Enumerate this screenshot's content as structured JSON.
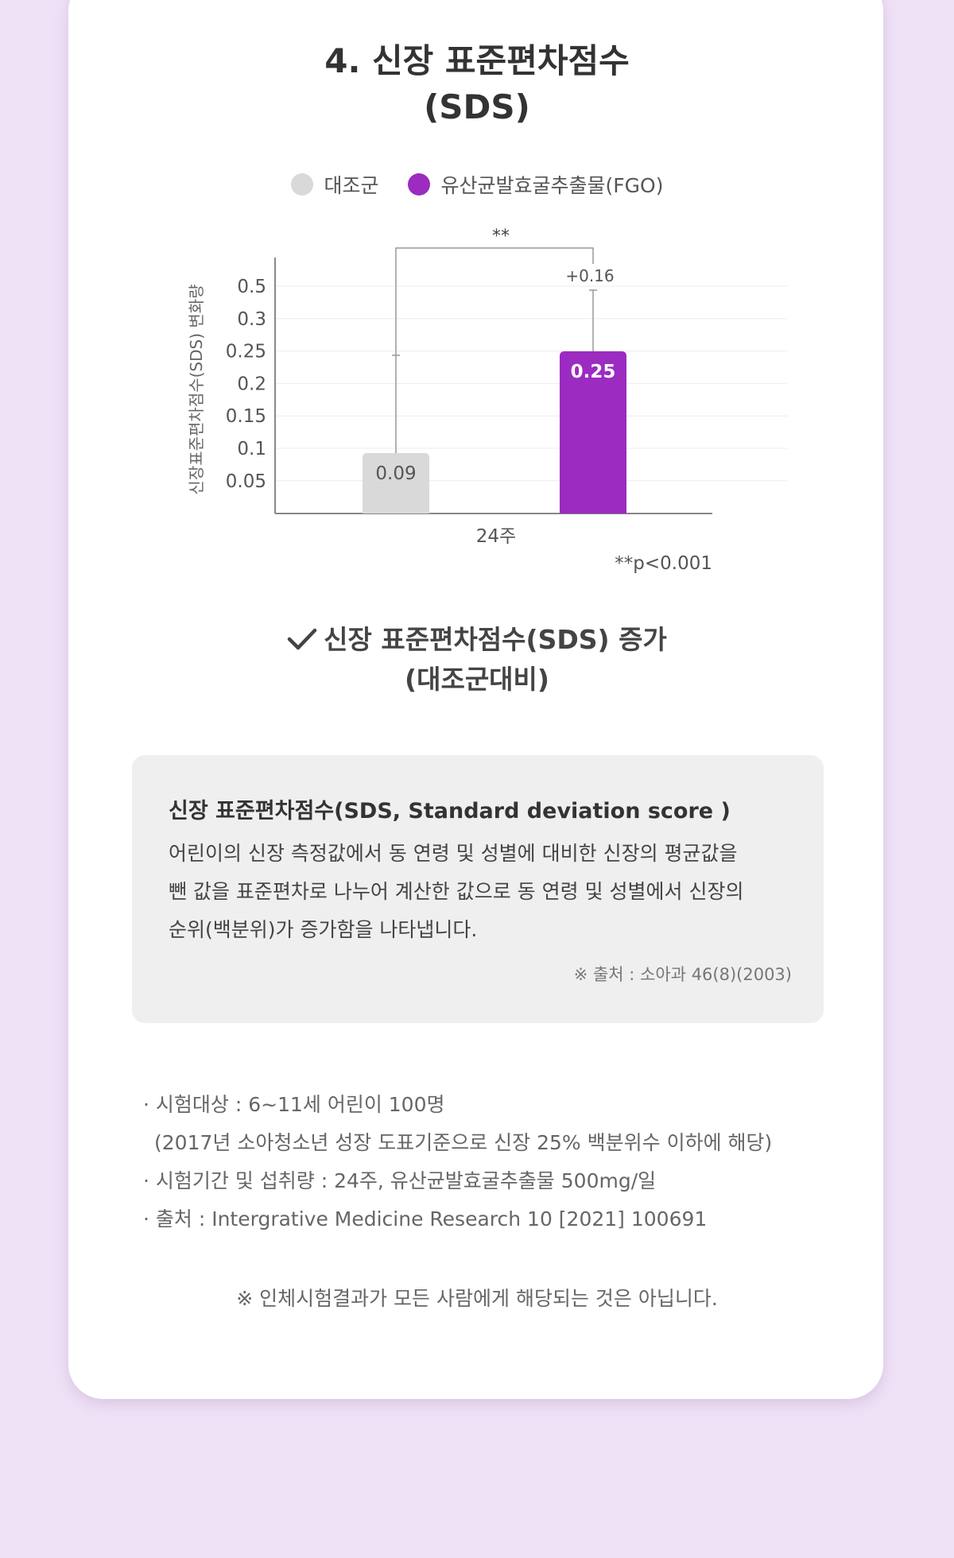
{
  "section": {
    "title_line1": "4. 신장 표준편차점수",
    "title_line2": "(SDS)"
  },
  "colors": {
    "control": "#d9d9d9",
    "treatment": "#9b2bc1",
    "background": "#efe2f6"
  },
  "chart_data": {
    "type": "bar",
    "categories": [
      "24주"
    ],
    "series": [
      {
        "name": "대조군",
        "values": [
          0.09
        ],
        "error_top": [
          0.25
        ],
        "color": "#d9d9d9",
        "value_label": "0.09"
      },
      {
        "name": "유산균발효굴추출물(FGO)",
        "values": [
          0.25
        ],
        "error_top": [
          0.41
        ],
        "color": "#9b2bc1",
        "value_label": "0.25"
      }
    ],
    "ylabel": "신장표준편차점수(SDS) 변화량",
    "yticks": [
      "0.05",
      "0.1",
      "0.15",
      "0.2",
      "0.25",
      "0.3",
      "0.5"
    ],
    "difference_label": "+0.16",
    "significance_marker": "**",
    "footnote": "**p<0.001",
    "grid": true,
    "legend_position": "top"
  },
  "conclusion": {
    "line1": "신장 표준편차점수(SDS) 증가",
    "line2": "(대조군대비)"
  },
  "info": {
    "title": "신장 표준편차점수(SDS, Standard deviation score )",
    "body_line1": "어린이의 신장 측정값에서 동 연령 및 성별에 대비한 신장의 평균값을",
    "body_line2": "뺀 값을 표준편차로 나누어 계산한 값으로 동 연령 및 성별에서 신장의",
    "body_line3": "순위(백분위)가 증가함을 나타냅니다.",
    "source": "※ 출처 : 소아과 46(8)(2003)"
  },
  "notes": {
    "subject": "· 시험대상 : 6~11세 어린이 100명",
    "subject_detail": "(2017년 소아청소년 성장 도표기준으로 신장 25% 백분위수 이하에 해당)",
    "period": "· 시험기간 및 섭취량 : 24주, 유산균발효굴추출물 500mg/일",
    "source": "· 출처 : Intergrative Medicine Research 10 [2021] 100691"
  },
  "disclaimer": "※ 인체시험결과가 모든 사람에게 해당되는 것은 아닙니다."
}
